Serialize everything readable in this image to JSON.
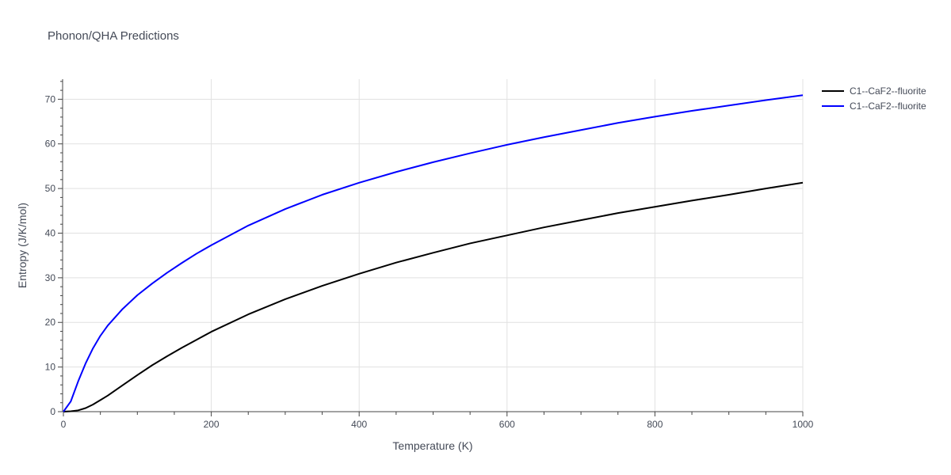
{
  "chart_data": {
    "type": "line",
    "title": "Phonon/QHA Predictions",
    "xlabel": "Temperature (K)",
    "ylabel": "Entropy (J/K/mol)",
    "xlim": [
      0,
      1000
    ],
    "ylim": [
      0,
      74.5
    ],
    "x_ticks": [
      0,
      200,
      400,
      600,
      800,
      1000
    ],
    "y_ticks": [
      0,
      10,
      20,
      30,
      40,
      50,
      60,
      70
    ],
    "grid": true,
    "legend_position": "top-right-outside",
    "series": [
      {
        "name": "C1--CaF2--fluorite",
        "color": "#000000",
        "x": [
          0,
          10,
          20,
          30,
          40,
          50,
          60,
          80,
          100,
          120,
          140,
          160,
          180,
          200,
          250,
          300,
          350,
          400,
          450,
          500,
          550,
          600,
          650,
          700,
          750,
          800,
          850,
          900,
          950,
          1000
        ],
        "y": [
          0,
          0.1,
          0.3,
          0.8,
          1.6,
          2.6,
          3.6,
          5.9,
          8.2,
          10.4,
          12.4,
          14.3,
          16.1,
          17.9,
          21.8,
          25.2,
          28.2,
          30.9,
          33.4,
          35.6,
          37.7,
          39.5,
          41.3,
          42.9,
          44.5,
          45.9,
          47.3,
          48.6,
          50.0,
          51.3
        ]
      },
      {
        "name": "C1--CaF2--fluorite",
        "color": "#0000ff",
        "x": [
          0,
          10,
          20,
          30,
          40,
          50,
          60,
          80,
          100,
          120,
          140,
          160,
          180,
          200,
          250,
          300,
          350,
          400,
          450,
          500,
          550,
          600,
          650,
          700,
          750,
          800,
          850,
          900,
          950,
          1000
        ],
        "y": [
          0,
          2.3,
          6.8,
          10.8,
          14.2,
          17.0,
          19.3,
          23.0,
          26.1,
          28.7,
          31.1,
          33.3,
          35.4,
          37.3,
          41.7,
          45.4,
          48.6,
          51.3,
          53.7,
          55.9,
          57.9,
          59.8,
          61.5,
          63.1,
          64.7,
          66.1,
          67.4,
          68.6,
          69.8,
          70.9
        ]
      }
    ]
  }
}
